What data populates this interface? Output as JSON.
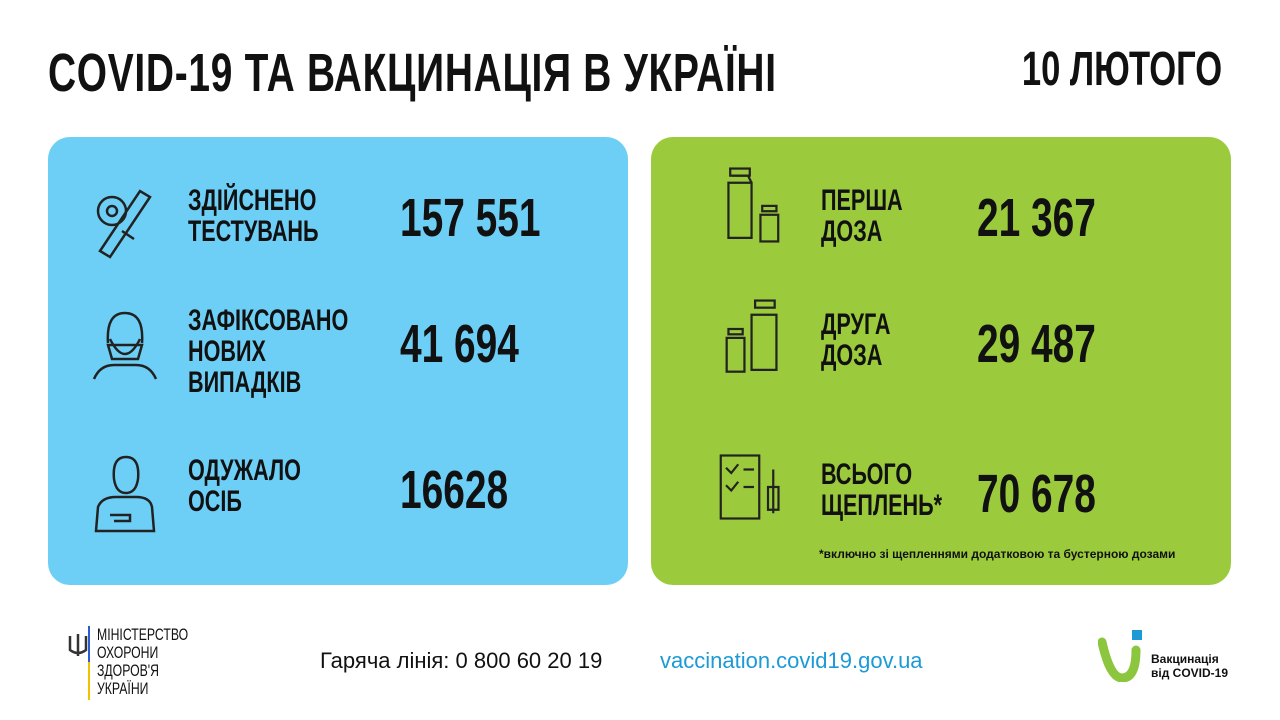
{
  "header": {
    "title": "COVID-19 ТА ВАКЦИНАЦІЯ В УКРАЇНІ",
    "date": "10 ЛЮТОГО"
  },
  "cases": [
    {
      "icon": "test-tube-virus-icon",
      "label1": "ЗДІЙСНЕНО",
      "label2": "ТЕСТУВАНЬ",
      "label3": "",
      "value": "157 551"
    },
    {
      "icon": "masked-person-icon",
      "label1": "ЗАФІКСОВАНО",
      "label2": "НОВИХ",
      "label3": "ВИПАДКІВ",
      "value": "41 694"
    },
    {
      "icon": "recovered-person-icon",
      "label1": "ОДУЖАЛО",
      "label2": "ОСІБ",
      "label3": "",
      "value": "16628"
    }
  ],
  "vaccination": [
    {
      "icon": "vaccine-vials-icon",
      "label1": "ПЕРША",
      "label2": "ДОЗА",
      "value": "21 367"
    },
    {
      "icon": "vaccine-vials-icon",
      "label1": "ДРУГА",
      "label2": "ДОЗА",
      "value": "29 487"
    },
    {
      "icon": "checklist-syringe-icon",
      "label1": "ВСЬОГО",
      "label2": "ЩЕПЛЕНЬ*",
      "value": "70 678"
    }
  ],
  "note": "*включно зі щепленнями додатковою та бустерною дозами",
  "footer": {
    "ministry": [
      "МІНІСТЕРСТВО",
      "ОХОРОНИ",
      "ЗДОРОВ'Я",
      "УКРАЇНИ"
    ],
    "hotline": "Гаряча лінія: 0 800 60 20 19",
    "site": "vaccination.covid19.gov.ua",
    "vacc_logo_line1": "Вакцинація",
    "vacc_logo_line2": "від COVID-19"
  },
  "colors": {
    "blue_card": "#6dcff6",
    "green_card": "#9bcb3c",
    "link": "#1b9ad6"
  }
}
